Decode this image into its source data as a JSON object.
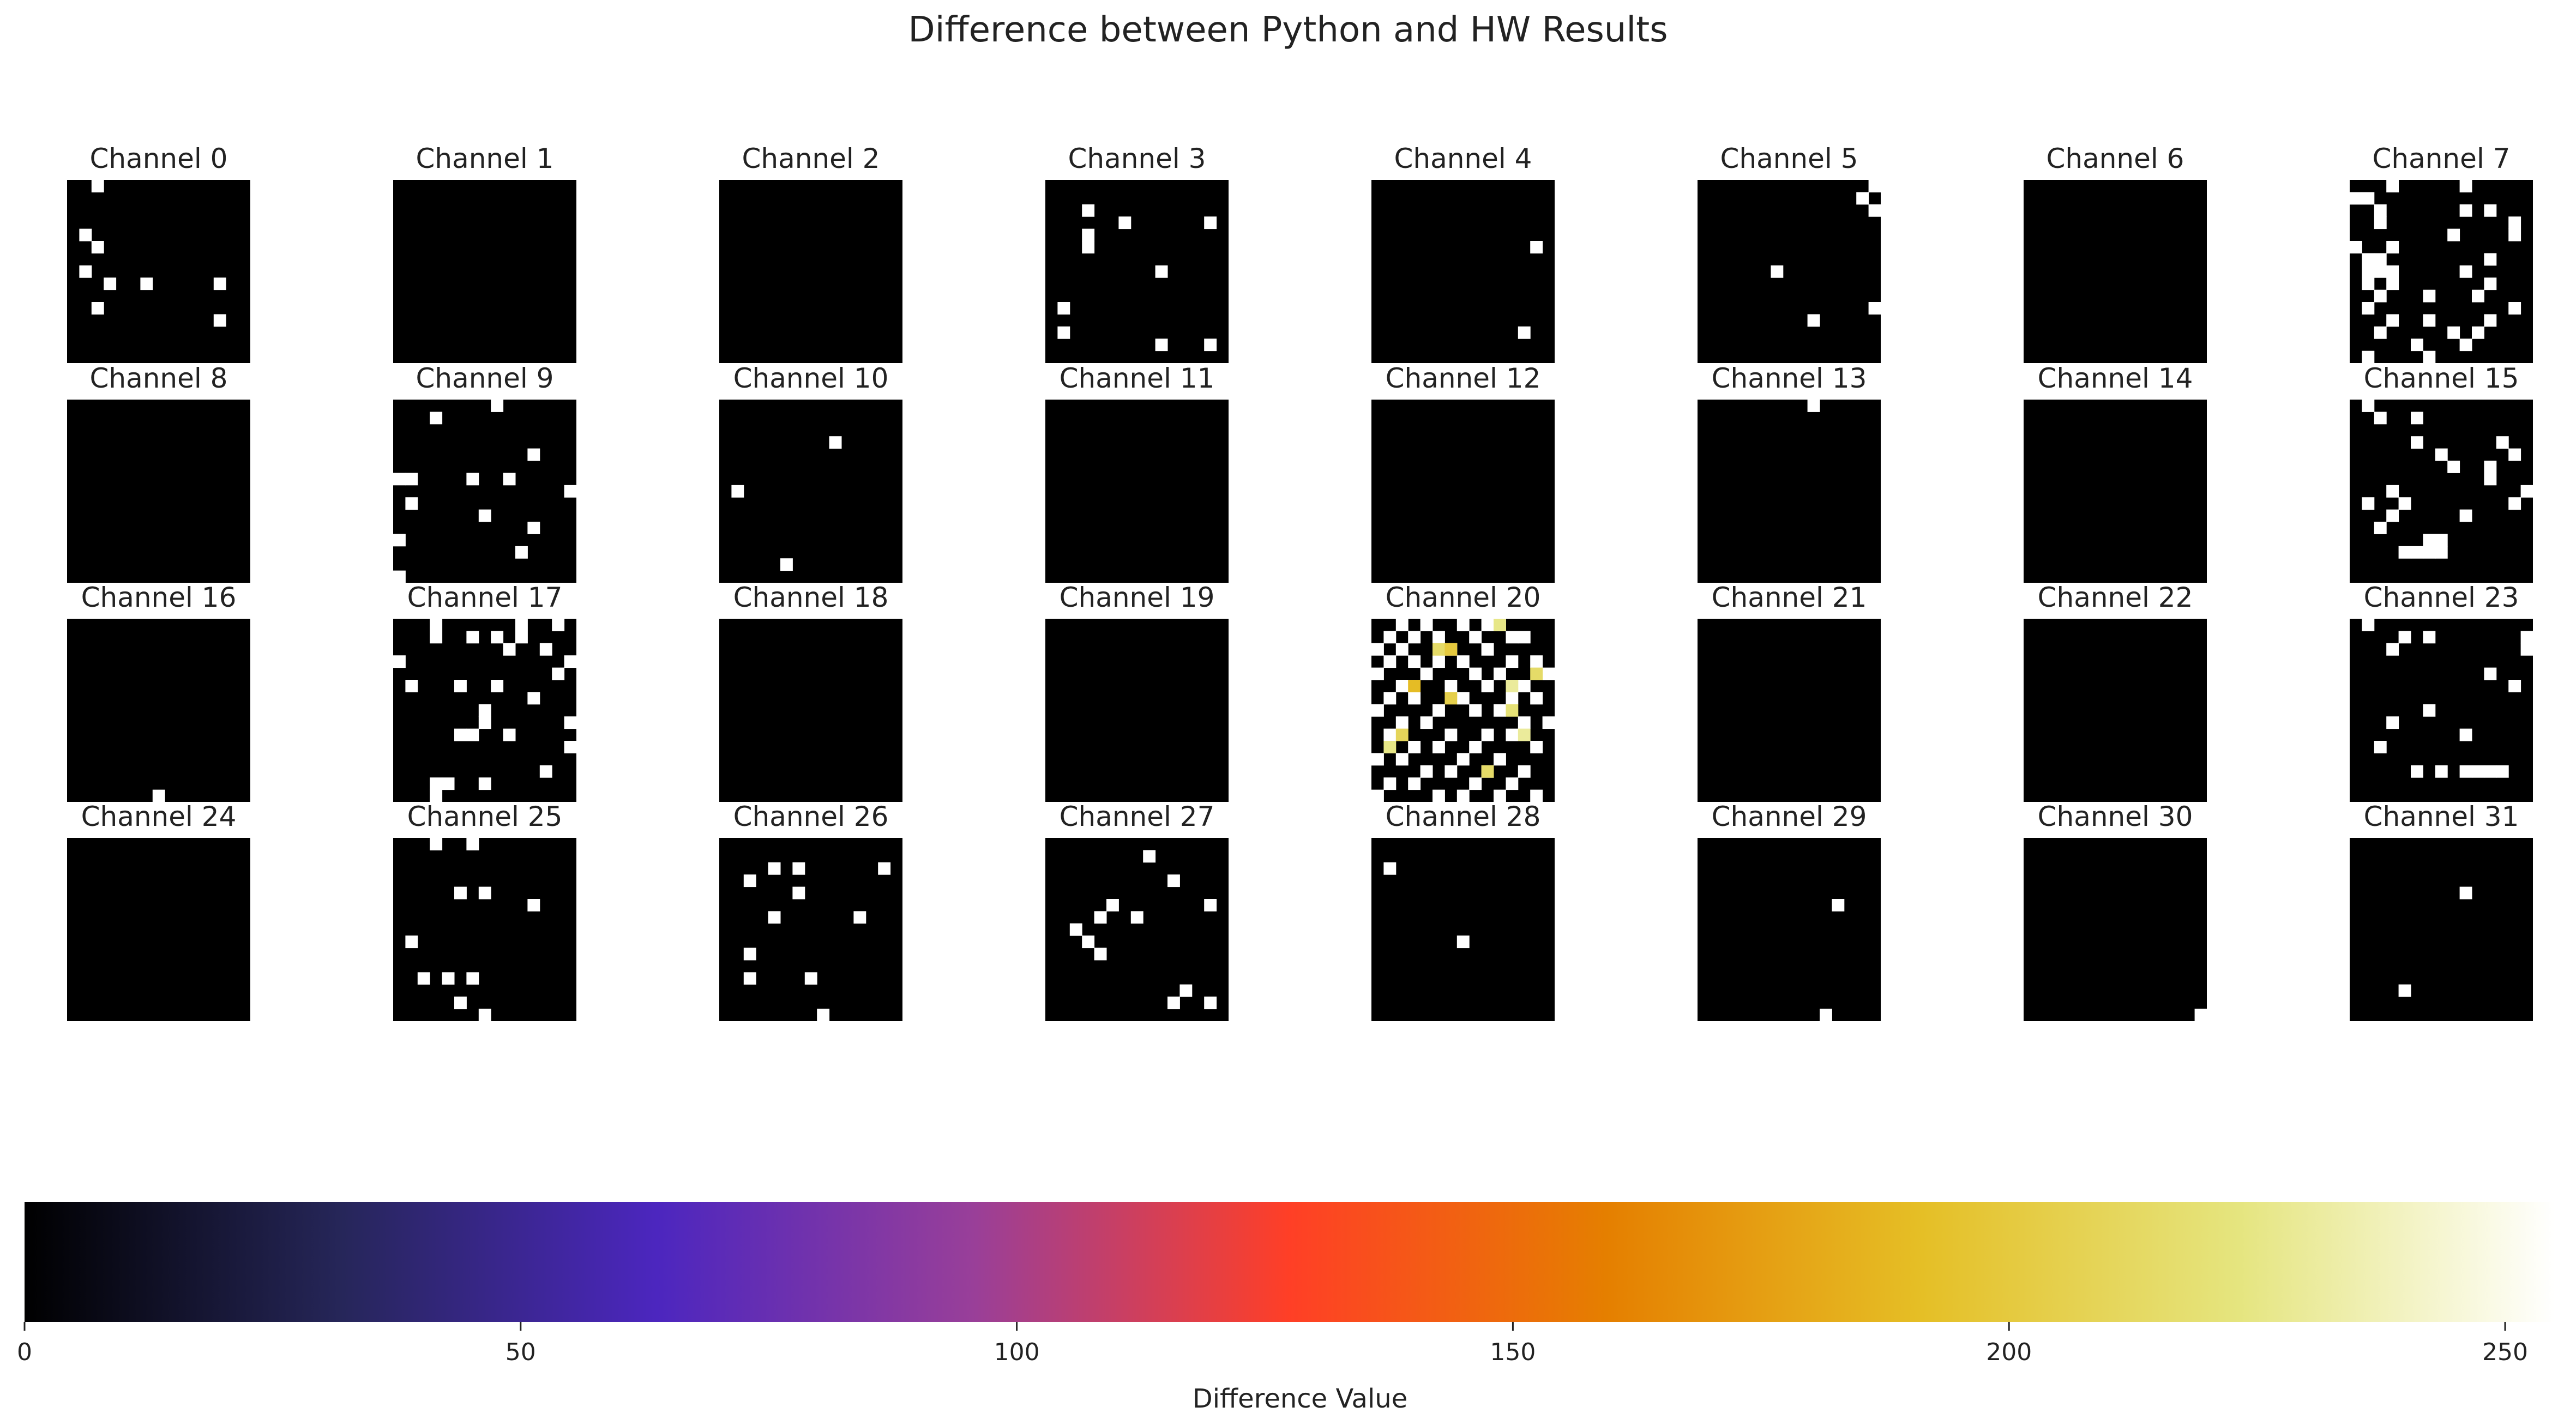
{
  "title": "Difference between Python and HW Results",
  "chart_data": {
    "type": "heatmap",
    "grid_size": 15,
    "colormap": "CMRmap",
    "value_range": [
      0,
      255
    ],
    "colorbar": {
      "label": "Difference Value",
      "ticks": [
        0,
        50,
        100,
        150,
        200,
        250
      ],
      "tick_labels": [
        "0",
        "50",
        "100",
        "150",
        "200",
        "250"
      ]
    },
    "channels": [
      {
        "label": "Channel 0",
        "cells": [
          [
            0,
            2
          ],
          [
            4,
            1
          ],
          [
            5,
            2
          ],
          [
            7,
            1
          ],
          [
            8,
            3
          ],
          [
            8,
            6
          ],
          [
            8,
            12
          ],
          [
            10,
            2
          ],
          [
            11,
            12
          ]
        ]
      },
      {
        "label": "Channel 1",
        "cells": []
      },
      {
        "label": "Channel 2",
        "cells": []
      },
      {
        "label": "Channel 3",
        "cells": [
          [
            2,
            3
          ],
          [
            3,
            6
          ],
          [
            3,
            13
          ],
          [
            4,
            3
          ],
          [
            5,
            3
          ],
          [
            7,
            9
          ],
          [
            10,
            1
          ],
          [
            12,
            1
          ],
          [
            13,
            9
          ],
          [
            13,
            13
          ]
        ]
      },
      {
        "label": "Channel 4",
        "cells": [
          [
            5,
            13
          ],
          [
            12,
            12
          ]
        ]
      },
      {
        "label": "Channel 5",
        "cells": [
          [
            0,
            14
          ],
          [
            1,
            13
          ],
          [
            2,
            14
          ],
          [
            7,
            6
          ],
          [
            10,
            14
          ],
          [
            11,
            9
          ]
        ]
      },
      {
        "label": "Channel 6",
        "cells": []
      },
      {
        "label": "Channel 7",
        "cells": [
          [
            0,
            3
          ],
          [
            0,
            9
          ],
          [
            1,
            0
          ],
          [
            1,
            1
          ],
          [
            2,
            2
          ],
          [
            2,
            9
          ],
          [
            2,
            11
          ],
          [
            3,
            2
          ],
          [
            3,
            13
          ],
          [
            4,
            8
          ],
          [
            4,
            13
          ],
          [
            5,
            0
          ],
          [
            5,
            3
          ],
          [
            6,
            1
          ],
          [
            6,
            2
          ],
          [
            6,
            11
          ],
          [
            7,
            1
          ],
          [
            7,
            2
          ],
          [
            7,
            3
          ],
          [
            7,
            9
          ],
          [
            8,
            1
          ],
          [
            8,
            3
          ],
          [
            8,
            11
          ],
          [
            9,
            2
          ],
          [
            9,
            6
          ],
          [
            9,
            10
          ],
          [
            10,
            1
          ],
          [
            10,
            13
          ],
          [
            11,
            3
          ],
          [
            11,
            6
          ],
          [
            11,
            11
          ],
          [
            12,
            2
          ],
          [
            12,
            8
          ],
          [
            12,
            10
          ],
          [
            13,
            5
          ],
          [
            13,
            9
          ],
          [
            14,
            1
          ],
          [
            14,
            6
          ]
        ]
      },
      {
        "label": "Channel 8",
        "cells": []
      },
      {
        "label": "Channel 9",
        "cells": [
          [
            0,
            8
          ],
          [
            1,
            3
          ],
          [
            4,
            11
          ],
          [
            6,
            0
          ],
          [
            6,
            1
          ],
          [
            6,
            6
          ],
          [
            6,
            9
          ],
          [
            7,
            14
          ],
          [
            8,
            1
          ],
          [
            9,
            7
          ],
          [
            10,
            11
          ],
          [
            11,
            0
          ],
          [
            12,
            10
          ],
          [
            14,
            0
          ]
        ]
      },
      {
        "label": "Channel 10",
        "cells": [
          [
            3,
            9
          ],
          [
            7,
            1
          ],
          [
            13,
            5
          ]
        ]
      },
      {
        "label": "Channel 11",
        "cells": []
      },
      {
        "label": "Channel 12",
        "cells": []
      },
      {
        "label": "Channel 13",
        "cells": [
          [
            0,
            9
          ]
        ]
      },
      {
        "label": "Channel 14",
        "cells": []
      },
      {
        "label": "Channel 15",
        "cells": [
          [
            0,
            1
          ],
          [
            1,
            2
          ],
          [
            1,
            5
          ],
          [
            3,
            5
          ],
          [
            3,
            12
          ],
          [
            4,
            7
          ],
          [
            4,
            13
          ],
          [
            5,
            8
          ],
          [
            5,
            11
          ],
          [
            6,
            11
          ],
          [
            7,
            3
          ],
          [
            7,
            14
          ],
          [
            8,
            1
          ],
          [
            8,
            4
          ],
          [
            8,
            13
          ],
          [
            9,
            3
          ],
          [
            9,
            9
          ],
          [
            10,
            2
          ],
          [
            11,
            6
          ],
          [
            11,
            7
          ],
          [
            12,
            4
          ],
          [
            12,
            5
          ],
          [
            12,
            6
          ],
          [
            12,
            7
          ]
        ]
      },
      {
        "label": "Channel 16",
        "cells": [
          [
            14,
            7
          ]
        ]
      },
      {
        "label": "Channel 17",
        "cells": [
          [
            0,
            3
          ],
          [
            0,
            10
          ],
          [
            0,
            13
          ],
          [
            1,
            3
          ],
          [
            1,
            6
          ],
          [
            1,
            8
          ],
          [
            1,
            10
          ],
          [
            2,
            9
          ],
          [
            2,
            12
          ],
          [
            3,
            0
          ],
          [
            3,
            14
          ],
          [
            4,
            13
          ],
          [
            5,
            1
          ],
          [
            5,
            5
          ],
          [
            5,
            8
          ],
          [
            6,
            11
          ],
          [
            7,
            7
          ],
          [
            8,
            7
          ],
          [
            8,
            14
          ],
          [
            9,
            5
          ],
          [
            9,
            6
          ],
          [
            9,
            9
          ],
          [
            10,
            14
          ],
          [
            12,
            12
          ],
          [
            13,
            3
          ],
          [
            13,
            4
          ],
          [
            13,
            7
          ],
          [
            14,
            3
          ]
        ]
      },
      {
        "label": "Channel 18",
        "cells": []
      },
      {
        "label": "Channel 19",
        "cells": []
      },
      {
        "label": "Channel 20",
        "cells": [
          [
            0,
            2
          ],
          [
            0,
            4
          ],
          [
            0,
            7
          ],
          [
            0,
            9
          ],
          [
            0,
            10
          ],
          [
            1,
            1
          ],
          [
            1,
            3
          ],
          [
            1,
            5
          ],
          [
            1,
            8
          ],
          [
            1,
            11
          ],
          [
            1,
            12
          ],
          [
            2,
            0
          ],
          [
            2,
            2
          ],
          [
            2,
            6
          ],
          [
            2,
            9
          ],
          [
            3,
            1
          ],
          [
            3,
            3
          ],
          [
            3,
            5
          ],
          [
            3,
            7
          ],
          [
            3,
            11
          ],
          [
            3,
            13
          ],
          [
            4,
            0
          ],
          [
            4,
            4
          ],
          [
            4,
            8
          ],
          [
            4,
            10
          ],
          [
            4,
            14
          ],
          [
            5,
            2
          ],
          [
            5,
            6
          ],
          [
            5,
            9
          ],
          [
            5,
            12
          ],
          [
            6,
            1
          ],
          [
            6,
            3
          ],
          [
            6,
            7
          ],
          [
            6,
            11
          ],
          [
            6,
            13
          ],
          [
            7,
            0
          ],
          [
            7,
            5
          ],
          [
            7,
            8
          ],
          [
            7,
            10
          ],
          [
            8,
            2
          ],
          [
            8,
            4
          ],
          [
            8,
            12
          ],
          [
            8,
            14
          ],
          [
            9,
            1
          ],
          [
            9,
            6
          ],
          [
            9,
            9
          ],
          [
            9,
            11
          ],
          [
            10,
            3
          ],
          [
            10,
            5
          ],
          [
            10,
            8
          ],
          [
            10,
            13
          ],
          [
            11,
            0
          ],
          [
            11,
            2
          ],
          [
            11,
            7
          ],
          [
            11,
            10
          ],
          [
            12,
            4
          ],
          [
            12,
            6
          ],
          [
            12,
            9
          ],
          [
            12,
            12
          ],
          [
            13,
            1
          ],
          [
            13,
            3
          ],
          [
            13,
            8
          ],
          [
            13,
            11
          ],
          [
            14,
            0
          ],
          [
            14,
            5
          ],
          [
            14,
            7
          ],
          [
            14,
            10
          ],
          [
            14,
            13
          ]
        ]
      },
      {
        "label": "Channel 21",
        "cells": []
      },
      {
        "label": "Channel 22",
        "cells": []
      },
      {
        "label": "Channel 23",
        "cells": [
          [
            0,
            1
          ],
          [
            1,
            4
          ],
          [
            1,
            6
          ],
          [
            1,
            14
          ],
          [
            2,
            3
          ],
          [
            2,
            14
          ],
          [
            4,
            11
          ],
          [
            5,
            13
          ],
          [
            7,
            6
          ],
          [
            8,
            3
          ],
          [
            9,
            9
          ],
          [
            10,
            2
          ],
          [
            12,
            5
          ],
          [
            12,
            7
          ],
          [
            12,
            9
          ],
          [
            12,
            10
          ],
          [
            12,
            11
          ],
          [
            12,
            12
          ]
        ]
      },
      {
        "label": "Channel 24",
        "cells": []
      },
      {
        "label": "Channel 25",
        "cells": [
          [
            0,
            3
          ],
          [
            0,
            6
          ],
          [
            4,
            5
          ],
          [
            4,
            7
          ],
          [
            5,
            11
          ],
          [
            8,
            1
          ],
          [
            11,
            2
          ],
          [
            11,
            4
          ],
          [
            11,
            6
          ],
          [
            13,
            5
          ],
          [
            14,
            7
          ]
        ]
      },
      {
        "label": "Channel 26",
        "cells": [
          [
            2,
            4
          ],
          [
            2,
            6
          ],
          [
            2,
            13
          ],
          [
            3,
            2
          ],
          [
            4,
            6
          ],
          [
            6,
            4
          ],
          [
            6,
            11
          ],
          [
            9,
            2
          ],
          [
            11,
            7
          ],
          [
            11,
            2
          ],
          [
            14,
            8
          ]
        ]
      },
      {
        "label": "Channel 27",
        "cells": [
          [
            1,
            8
          ],
          [
            3,
            10
          ],
          [
            5,
            5
          ],
          [
            5,
            13
          ],
          [
            6,
            4
          ],
          [
            6,
            7
          ],
          [
            7,
            2
          ],
          [
            8,
            3
          ],
          [
            9,
            4
          ],
          [
            12,
            11
          ],
          [
            13,
            10
          ],
          [
            13,
            13
          ]
        ]
      },
      {
        "label": "Channel 28",
        "cells": [
          [
            2,
            1
          ],
          [
            8,
            7
          ]
        ]
      },
      {
        "label": "Channel 29",
        "cells": [
          [
            5,
            11
          ],
          [
            14,
            10
          ]
        ]
      },
      {
        "label": "Channel 30",
        "cells": [
          [
            14,
            14
          ]
        ]
      },
      {
        "label": "Channel 31",
        "cells": [
          [
            4,
            9
          ],
          [
            12,
            4
          ]
        ]
      }
    ],
    "warm_cells_channel": 20,
    "warm_cells": [
      [
        0,
        10,
        225
      ],
      [
        2,
        5,
        215
      ],
      [
        2,
        6,
        200
      ],
      [
        4,
        13,
        215
      ],
      [
        5,
        3,
        190
      ],
      [
        5,
        11,
        230
      ],
      [
        6,
        6,
        205
      ],
      [
        7,
        11,
        220
      ],
      [
        9,
        2,
        210
      ],
      [
        9,
        12,
        230
      ],
      [
        10,
        1,
        225
      ],
      [
        12,
        9,
        215
      ]
    ]
  }
}
